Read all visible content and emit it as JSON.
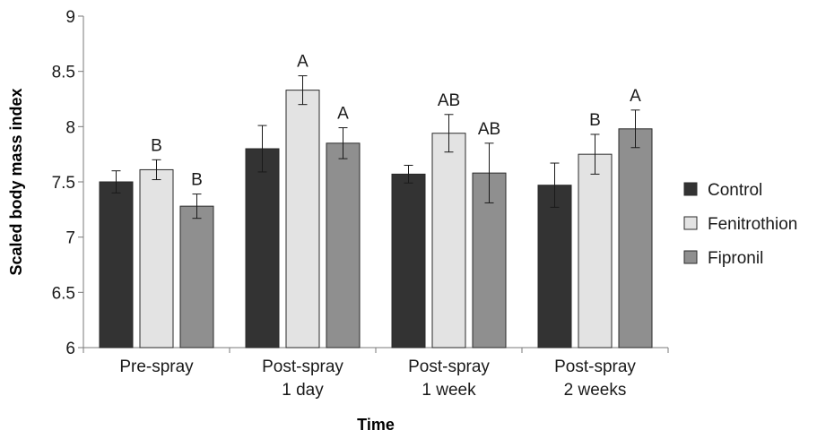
{
  "chart_data": {
    "type": "bar",
    "xlabel": "Time",
    "ylabel": "Scaled body mass index",
    "ylim": [
      6,
      9
    ],
    "yticks": [
      "6",
      "6.5",
      "7",
      "7.5",
      "8",
      "8.5",
      "9"
    ],
    "grid": false,
    "legend_position": "right",
    "categories": [
      [
        "Pre-spray"
      ],
      [
        "Post-spray",
        "1 day"
      ],
      [
        "Post-spray",
        "1 week"
      ],
      [
        "Post-spray",
        "2 weeks"
      ]
    ],
    "series": [
      {
        "name": "Control",
        "color": "#333333",
        "values": [
          7.5,
          7.8,
          7.57,
          7.47
        ],
        "error": [
          0.1,
          0.21,
          0.08,
          0.2
        ],
        "labels": [
          "",
          "",
          "",
          ""
        ]
      },
      {
        "name": "Fenitrothion",
        "color": "#e3e3e3",
        "values": [
          7.61,
          8.33,
          7.94,
          7.75
        ],
        "error": [
          0.09,
          0.13,
          0.17,
          0.18
        ],
        "labels": [
          "B",
          "A",
          "AB",
          "B"
        ]
      },
      {
        "name": "Fipronil",
        "color": "#8f8f8f",
        "values": [
          7.28,
          7.85,
          7.58,
          7.98
        ],
        "error": [
          0.11,
          0.14,
          0.27,
          0.17
        ],
        "labels": [
          "B",
          "A",
          "AB",
          "A"
        ]
      }
    ]
  }
}
